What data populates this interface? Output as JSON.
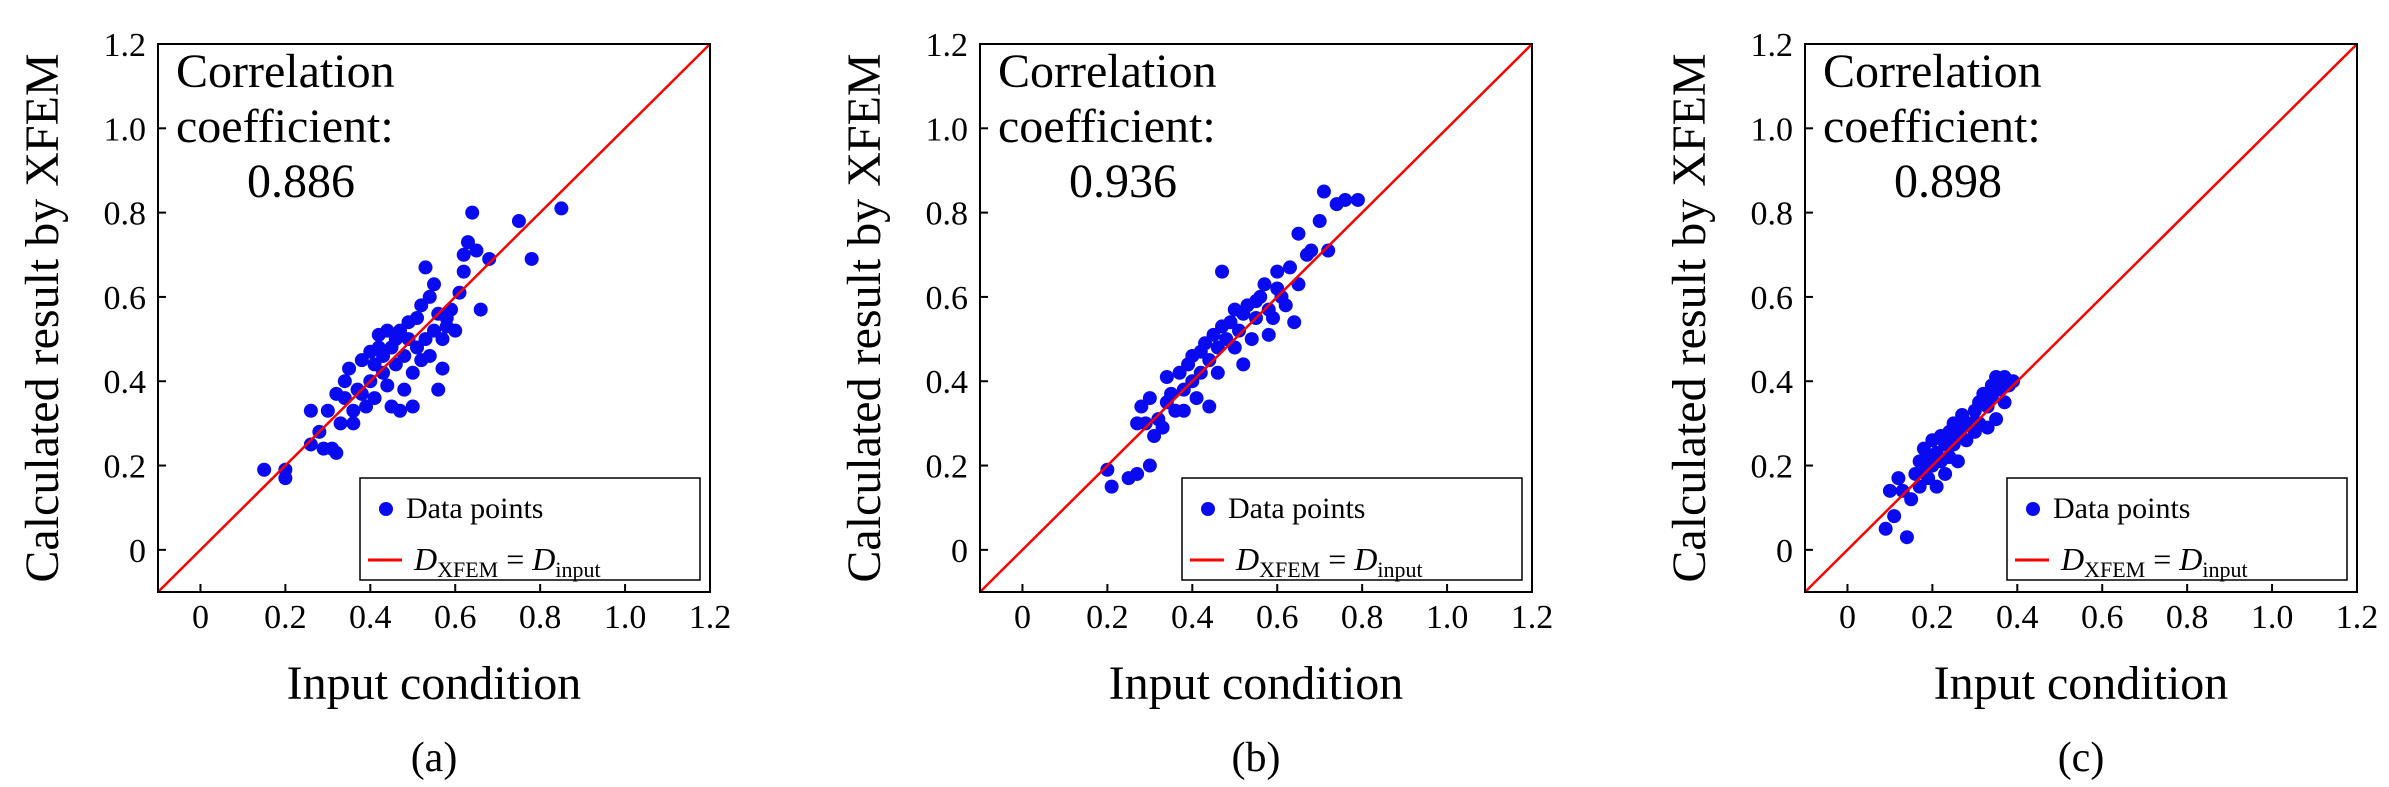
{
  "figure": {
    "colors": {
      "points": "#0a0af0",
      "line": "#ff0000",
      "axis": "#000000"
    }
  },
  "chart_data": [
    {
      "type": "scatter",
      "panel_label": "(a)",
      "xlabel": "Input condition",
      "ylabel": "Calculated result by XFEM",
      "xlim": [
        -0.1,
        1.2
      ],
      "ylim": [
        -0.1,
        1.2
      ],
      "xticks": [
        "0",
        "0.2",
        "0.4",
        "0.6",
        "0.8",
        "1.0",
        "1.2"
      ],
      "yticks": [
        "0",
        "0.2",
        "0.4",
        "0.6",
        "0.8",
        "1.0",
        "1.2"
      ],
      "annotation": [
        "Correlation",
        "coefficient:",
        "0.886"
      ],
      "legend": {
        "placement": "bottom-right",
        "points_label": "Data points",
        "line_label_parts": [
          "D",
          "XFEM",
          " = ",
          "D",
          "input"
        ]
      },
      "reference_line": "y = x",
      "series": [
        {
          "name": "Data points",
          "points": [
            [
              0.15,
              0.19
            ],
            [
              0.2,
              0.17
            ],
            [
              0.2,
              0.19
            ],
            [
              0.26,
              0.25
            ],
            [
              0.26,
              0.33
            ],
            [
              0.28,
              0.28
            ],
            [
              0.29,
              0.24
            ],
            [
              0.3,
              0.33
            ],
            [
              0.31,
              0.24
            ],
            [
              0.32,
              0.37
            ],
            [
              0.32,
              0.23
            ],
            [
              0.33,
              0.3
            ],
            [
              0.34,
              0.36
            ],
            [
              0.34,
              0.4
            ],
            [
              0.35,
              0.43
            ],
            [
              0.36,
              0.33
            ],
            [
              0.36,
              0.3
            ],
            [
              0.37,
              0.38
            ],
            [
              0.38,
              0.37
            ],
            [
              0.38,
              0.45
            ],
            [
              0.39,
              0.34
            ],
            [
              0.4,
              0.4
            ],
            [
              0.4,
              0.47
            ],
            [
              0.41,
              0.36
            ],
            [
              0.41,
              0.44
            ],
            [
              0.42,
              0.48
            ],
            [
              0.42,
              0.51
            ],
            [
              0.43,
              0.42
            ],
            [
              0.43,
              0.46
            ],
            [
              0.44,
              0.52
            ],
            [
              0.44,
              0.39
            ],
            [
              0.45,
              0.34
            ],
            [
              0.45,
              0.48
            ],
            [
              0.46,
              0.5
            ],
            [
              0.46,
              0.44
            ],
            [
              0.47,
              0.52
            ],
            [
              0.47,
              0.33
            ],
            [
              0.48,
              0.38
            ],
            [
              0.48,
              0.46
            ],
            [
              0.49,
              0.54
            ],
            [
              0.49,
              0.5
            ],
            [
              0.5,
              0.42
            ],
            [
              0.5,
              0.34
            ],
            [
              0.51,
              0.48
            ],
            [
              0.51,
              0.55
            ],
            [
              0.52,
              0.58
            ],
            [
              0.52,
              0.45
            ],
            [
              0.53,
              0.5
            ],
            [
              0.53,
              0.67
            ],
            [
              0.54,
              0.6
            ],
            [
              0.54,
              0.46
            ],
            [
              0.55,
              0.63
            ],
            [
              0.55,
              0.52
            ],
            [
              0.56,
              0.38
            ],
            [
              0.56,
              0.56
            ],
            [
              0.57,
              0.43
            ],
            [
              0.57,
              0.5
            ],
            [
              0.58,
              0.55
            ],
            [
              0.58,
              0.53
            ],
            [
              0.59,
              0.57
            ],
            [
              0.6,
              0.52
            ],
            [
              0.61,
              0.61
            ],
            [
              0.62,
              0.66
            ],
            [
              0.62,
              0.7
            ],
            [
              0.63,
              0.73
            ],
            [
              0.64,
              0.8
            ],
            [
              0.65,
              0.71
            ],
            [
              0.66,
              0.57
            ],
            [
              0.68,
              0.69
            ],
            [
              0.75,
              0.78
            ],
            [
              0.78,
              0.69
            ],
            [
              0.85,
              0.81
            ]
          ]
        }
      ]
    },
    {
      "type": "scatter",
      "panel_label": "(b)",
      "xlabel": "Input condition",
      "ylabel": "Calculated result by XFEM",
      "xlim": [
        -0.1,
        1.2
      ],
      "ylim": [
        -0.1,
        1.2
      ],
      "xticks": [
        "0",
        "0.2",
        "0.4",
        "0.6",
        "0.8",
        "1.0",
        "1.2"
      ],
      "yticks": [
        "0",
        "0.2",
        "0.4",
        "0.6",
        "0.8",
        "1.0",
        "1.2"
      ],
      "annotation": [
        "Correlation",
        "coefficient:",
        "0.936"
      ],
      "legend": {
        "placement": "bottom-right",
        "points_label": "Data points",
        "line_label_parts": [
          "D",
          "XFEM",
          " = ",
          "D",
          "input"
        ]
      },
      "reference_line": "y = x",
      "series": [
        {
          "name": "Data points",
          "points": [
            [
              0.2,
              0.19
            ],
            [
              0.21,
              0.15
            ],
            [
              0.25,
              0.17
            ],
            [
              0.27,
              0.18
            ],
            [
              0.27,
              0.3
            ],
            [
              0.28,
              0.34
            ],
            [
              0.29,
              0.3
            ],
            [
              0.3,
              0.2
            ],
            [
              0.3,
              0.36
            ],
            [
              0.31,
              0.27
            ],
            [
              0.32,
              0.31
            ],
            [
              0.33,
              0.29
            ],
            [
              0.34,
              0.35
            ],
            [
              0.34,
              0.41
            ],
            [
              0.35,
              0.37
            ],
            [
              0.36,
              0.33
            ],
            [
              0.37,
              0.42
            ],
            [
              0.38,
              0.38
            ],
            [
              0.38,
              0.33
            ],
            [
              0.39,
              0.44
            ],
            [
              0.4,
              0.4
            ],
            [
              0.4,
              0.46
            ],
            [
              0.41,
              0.36
            ],
            [
              0.42,
              0.47
            ],
            [
              0.42,
              0.42
            ],
            [
              0.43,
              0.49
            ],
            [
              0.44,
              0.34
            ],
            [
              0.44,
              0.45
            ],
            [
              0.45,
              0.51
            ],
            [
              0.46,
              0.48
            ],
            [
              0.46,
              0.42
            ],
            [
              0.47,
              0.53
            ],
            [
              0.47,
              0.66
            ],
            [
              0.48,
              0.5
            ],
            [
              0.49,
              0.54
            ],
            [
              0.5,
              0.48
            ],
            [
              0.5,
              0.57
            ],
            [
              0.51,
              0.52
            ],
            [
              0.52,
              0.44
            ],
            [
              0.52,
              0.56
            ],
            [
              0.53,
              0.58
            ],
            [
              0.54,
              0.5
            ],
            [
              0.55,
              0.59
            ],
            [
              0.55,
              0.55
            ],
            [
              0.56,
              0.6
            ],
            [
              0.57,
              0.63
            ],
            [
              0.58,
              0.57
            ],
            [
              0.58,
              0.51
            ],
            [
              0.59,
              0.55
            ],
            [
              0.6,
              0.62
            ],
            [
              0.6,
              0.66
            ],
            [
              0.61,
              0.6
            ],
            [
              0.62,
              0.58
            ],
            [
              0.63,
              0.67
            ],
            [
              0.64,
              0.54
            ],
            [
              0.65,
              0.63
            ],
            [
              0.65,
              0.75
            ],
            [
              0.67,
              0.7
            ],
            [
              0.68,
              0.71
            ],
            [
              0.7,
              0.78
            ],
            [
              0.71,
              0.85
            ],
            [
              0.72,
              0.71
            ],
            [
              0.74,
              0.82
            ],
            [
              0.76,
              0.83
            ],
            [
              0.79,
              0.83
            ]
          ]
        }
      ]
    },
    {
      "type": "scatter",
      "panel_label": "(c)",
      "xlabel": "Input condition",
      "ylabel": "Calculated result by XFEM",
      "xlim": [
        -0.1,
        1.2
      ],
      "ylim": [
        -0.1,
        1.2
      ],
      "xticks": [
        "0",
        "0.2",
        "0.4",
        "0.6",
        "0.8",
        "1.0",
        "1.2"
      ],
      "yticks": [
        "0",
        "0.2",
        "0.4",
        "0.6",
        "0.8",
        "1.0",
        "1.2"
      ],
      "annotation": [
        "Correlation",
        "coefficient:",
        "0.898"
      ],
      "legend": {
        "placement": "bottom-right",
        "points_label": "Data points",
        "line_label_parts": [
          "D",
          "XFEM",
          " = ",
          "D",
          "input"
        ]
      },
      "reference_line": "y = x",
      "series": [
        {
          "name": "Data points",
          "points": [
            [
              0.09,
              0.05
            ],
            [
              0.1,
              0.14
            ],
            [
              0.11,
              0.08
            ],
            [
              0.12,
              0.17
            ],
            [
              0.13,
              0.14
            ],
            [
              0.14,
              0.03
            ],
            [
              0.15,
              0.12
            ],
            [
              0.16,
              0.18
            ],
            [
              0.17,
              0.21
            ],
            [
              0.17,
              0.15
            ],
            [
              0.18,
              0.24
            ],
            [
              0.18,
              0.19
            ],
            [
              0.19,
              0.22
            ],
            [
              0.19,
              0.17
            ],
            [
              0.2,
              0.26
            ],
            [
              0.2,
              0.2
            ],
            [
              0.21,
              0.23
            ],
            [
              0.21,
              0.15
            ],
            [
              0.22,
              0.27
            ],
            [
              0.22,
              0.21
            ],
            [
              0.23,
              0.25
            ],
            [
              0.23,
              0.18
            ],
            [
              0.24,
              0.28
            ],
            [
              0.24,
              0.22
            ],
            [
              0.25,
              0.3
            ],
            [
              0.25,
              0.25
            ],
            [
              0.26,
              0.27
            ],
            [
              0.26,
              0.21
            ],
            [
              0.27,
              0.29
            ],
            [
              0.27,
              0.32
            ],
            [
              0.28,
              0.26
            ],
            [
              0.29,
              0.3
            ],
            [
              0.3,
              0.28
            ],
            [
              0.3,
              0.33
            ],
            [
              0.31,
              0.35
            ],
            [
              0.31,
              0.3
            ],
            [
              0.32,
              0.37
            ],
            [
              0.33,
              0.34
            ],
            [
              0.33,
              0.29
            ],
            [
              0.34,
              0.39
            ],
            [
              0.34,
              0.36
            ],
            [
              0.35,
              0.31
            ],
            [
              0.35,
              0.41
            ],
            [
              0.36,
              0.38
            ],
            [
              0.37,
              0.35
            ],
            [
              0.37,
              0.41
            ],
            [
              0.38,
              0.39
            ],
            [
              0.39,
              0.4
            ]
          ]
        }
      ]
    }
  ]
}
